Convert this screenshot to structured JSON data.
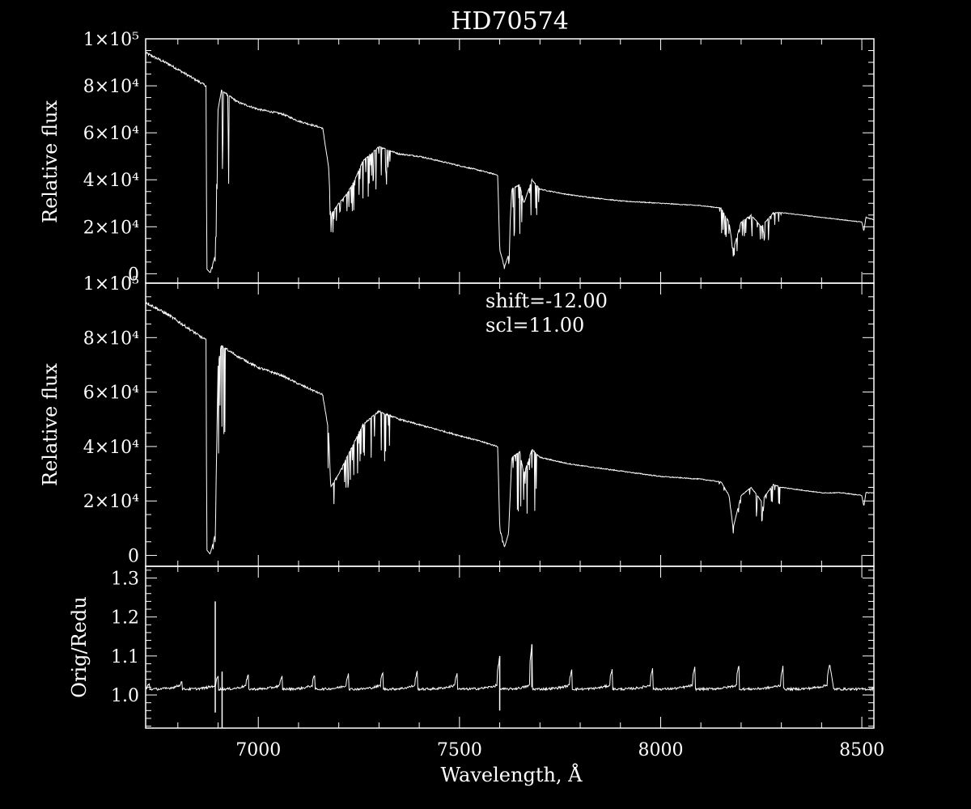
{
  "title": "HD70574",
  "colors": {
    "background": "#000000",
    "foreground": "#ffffff"
  },
  "annotations": {
    "shift": "shift=-12.00",
    "scl": "scl=11.00"
  },
  "chart_data": [
    {
      "type": "line",
      "panel": "top",
      "title": "HD70574",
      "xlabel": "",
      "ylabel": "Relative flux",
      "xlim": [
        6720,
        8530
      ],
      "ylim": [
        -4000,
        100000
      ],
      "yticks": [
        0,
        20000,
        40000,
        60000,
        80000,
        100000
      ],
      "ytick_labels": [
        "0",
        "2×10⁴",
        "4×10⁴",
        "6×10⁴",
        "8×10⁴",
        "1×10⁵"
      ],
      "x": [
        6720,
        6780,
        6830,
        6870,
        6872,
        6880,
        6885,
        6893,
        6900,
        6908,
        6950,
        7000,
        7060,
        7100,
        7160,
        7175,
        7180,
        7200,
        7220,
        7240,
        7260,
        7300,
        7350,
        7400,
        7450,
        7500,
        7550,
        7595,
        7600,
        7612,
        7622,
        7630,
        7650,
        7660,
        7680,
        7700,
        7760,
        7800,
        7900,
        8000,
        8100,
        8150,
        8170,
        8180,
        8200,
        8225,
        8250,
        8280,
        8300,
        8350,
        8400,
        8450,
        8500,
        8505,
        8510,
        8530
      ],
      "y": [
        94000,
        89000,
        84000,
        80000,
        2000,
        500,
        3000,
        8000,
        70000,
        78000,
        73000,
        70000,
        68000,
        65000,
        62000,
        45000,
        25000,
        30000,
        34000,
        40000,
        48000,
        54000,
        51000,
        50000,
        48000,
        46000,
        44000,
        42000,
        10000,
        3000,
        8000,
        36000,
        38000,
        30000,
        40000,
        36000,
        34000,
        33000,
        31000,
        30000,
        29000,
        28000,
        22000,
        10000,
        22000,
        25000,
        20000,
        26000,
        26000,
        25000,
        24000,
        23000,
        22000,
        18000,
        24000,
        23000
      ]
    },
    {
      "type": "line",
      "panel": "middle",
      "xlabel": "",
      "ylabel": "Relative flux",
      "xlim": [
        6720,
        8530
      ],
      "ylim": [
        -4000,
        100000
      ],
      "yticks": [
        0,
        20000,
        40000,
        60000,
        80000,
        100000
      ],
      "ytick_labels": [
        "0",
        "2×10⁴",
        "4×10⁴",
        "6×10⁴",
        "8×10⁴",
        "1×10⁵"
      ],
      "x": [
        6720,
        6780,
        6830,
        6870,
        6872,
        6880,
        6885,
        6893,
        6900,
        6908,
        6950,
        7000,
        7060,
        7100,
        7160,
        7175,
        7180,
        7200,
        7220,
        7240,
        7260,
        7300,
        7350,
        7400,
        7450,
        7500,
        7550,
        7595,
        7600,
        7612,
        7622,
        7630,
        7650,
        7660,
        7680,
        7700,
        7760,
        7800,
        7900,
        8000,
        8100,
        8150,
        8170,
        8180,
        8200,
        8225,
        8250,
        8280,
        8300,
        8350,
        8400,
        8450,
        8500,
        8505,
        8510,
        8530
      ],
      "y": [
        93000,
        88000,
        83000,
        79000,
        2000,
        500,
        3000,
        8000,
        70000,
        77000,
        73000,
        69000,
        66000,
        63000,
        59000,
        45000,
        25000,
        30000,
        36000,
        42000,
        48000,
        53000,
        50000,
        48000,
        46000,
        44000,
        42000,
        40000,
        10000,
        3000,
        8000,
        36000,
        38000,
        30000,
        39000,
        36000,
        34000,
        33000,
        31000,
        29000,
        28000,
        27000,
        22000,
        10000,
        22000,
        25000,
        20000,
        26000,
        25000,
        24000,
        23000,
        23000,
        22000,
        18000,
        23000,
        23000
      ]
    },
    {
      "type": "line",
      "panel": "bottom",
      "xlabel": "Wavelength, Å",
      "ylabel": "Orig/Redu",
      "xlim": [
        6720,
        8530
      ],
      "ylim": [
        0.915,
        1.33
      ],
      "yticks": [
        1.0,
        1.1,
        1.2,
        1.3
      ],
      "ytick_labels": [
        "1.0",
        "1.1",
        "1.2",
        "1.3"
      ],
      "xticks": [
        7000,
        7500,
        8000,
        8500
      ],
      "xtick_labels": [
        "7000",
        "7500",
        "8000",
        "8500"
      ],
      "spike_x": [
        6730,
        6810,
        6900,
        6975,
        7060,
        7140,
        7225,
        7310,
        7395,
        7495,
        7600,
        7680,
        7780,
        7880,
        7980,
        8085,
        8195,
        8305,
        8420
      ],
      "spike_y": [
        1.03,
        1.035,
        1.05,
        1.05,
        1.05,
        1.05,
        1.06,
        1.06,
        1.06,
        1.06,
        1.1,
        1.13,
        1.07,
        1.07,
        1.07,
        1.07,
        1.08,
        1.08,
        1.08
      ],
      "baseline": 1.015,
      "extremes": [
        {
          "x": 6893,
          "max": 1.24,
          "min": 0.955
        },
        {
          "x": 6910,
          "max": 1.06,
          "min": 0.91
        },
        {
          "x": 7600,
          "max": 1.1,
          "min": 0.96
        },
        {
          "x": 7680,
          "max": 1.13,
          "min": 1.02
        }
      ]
    }
  ]
}
